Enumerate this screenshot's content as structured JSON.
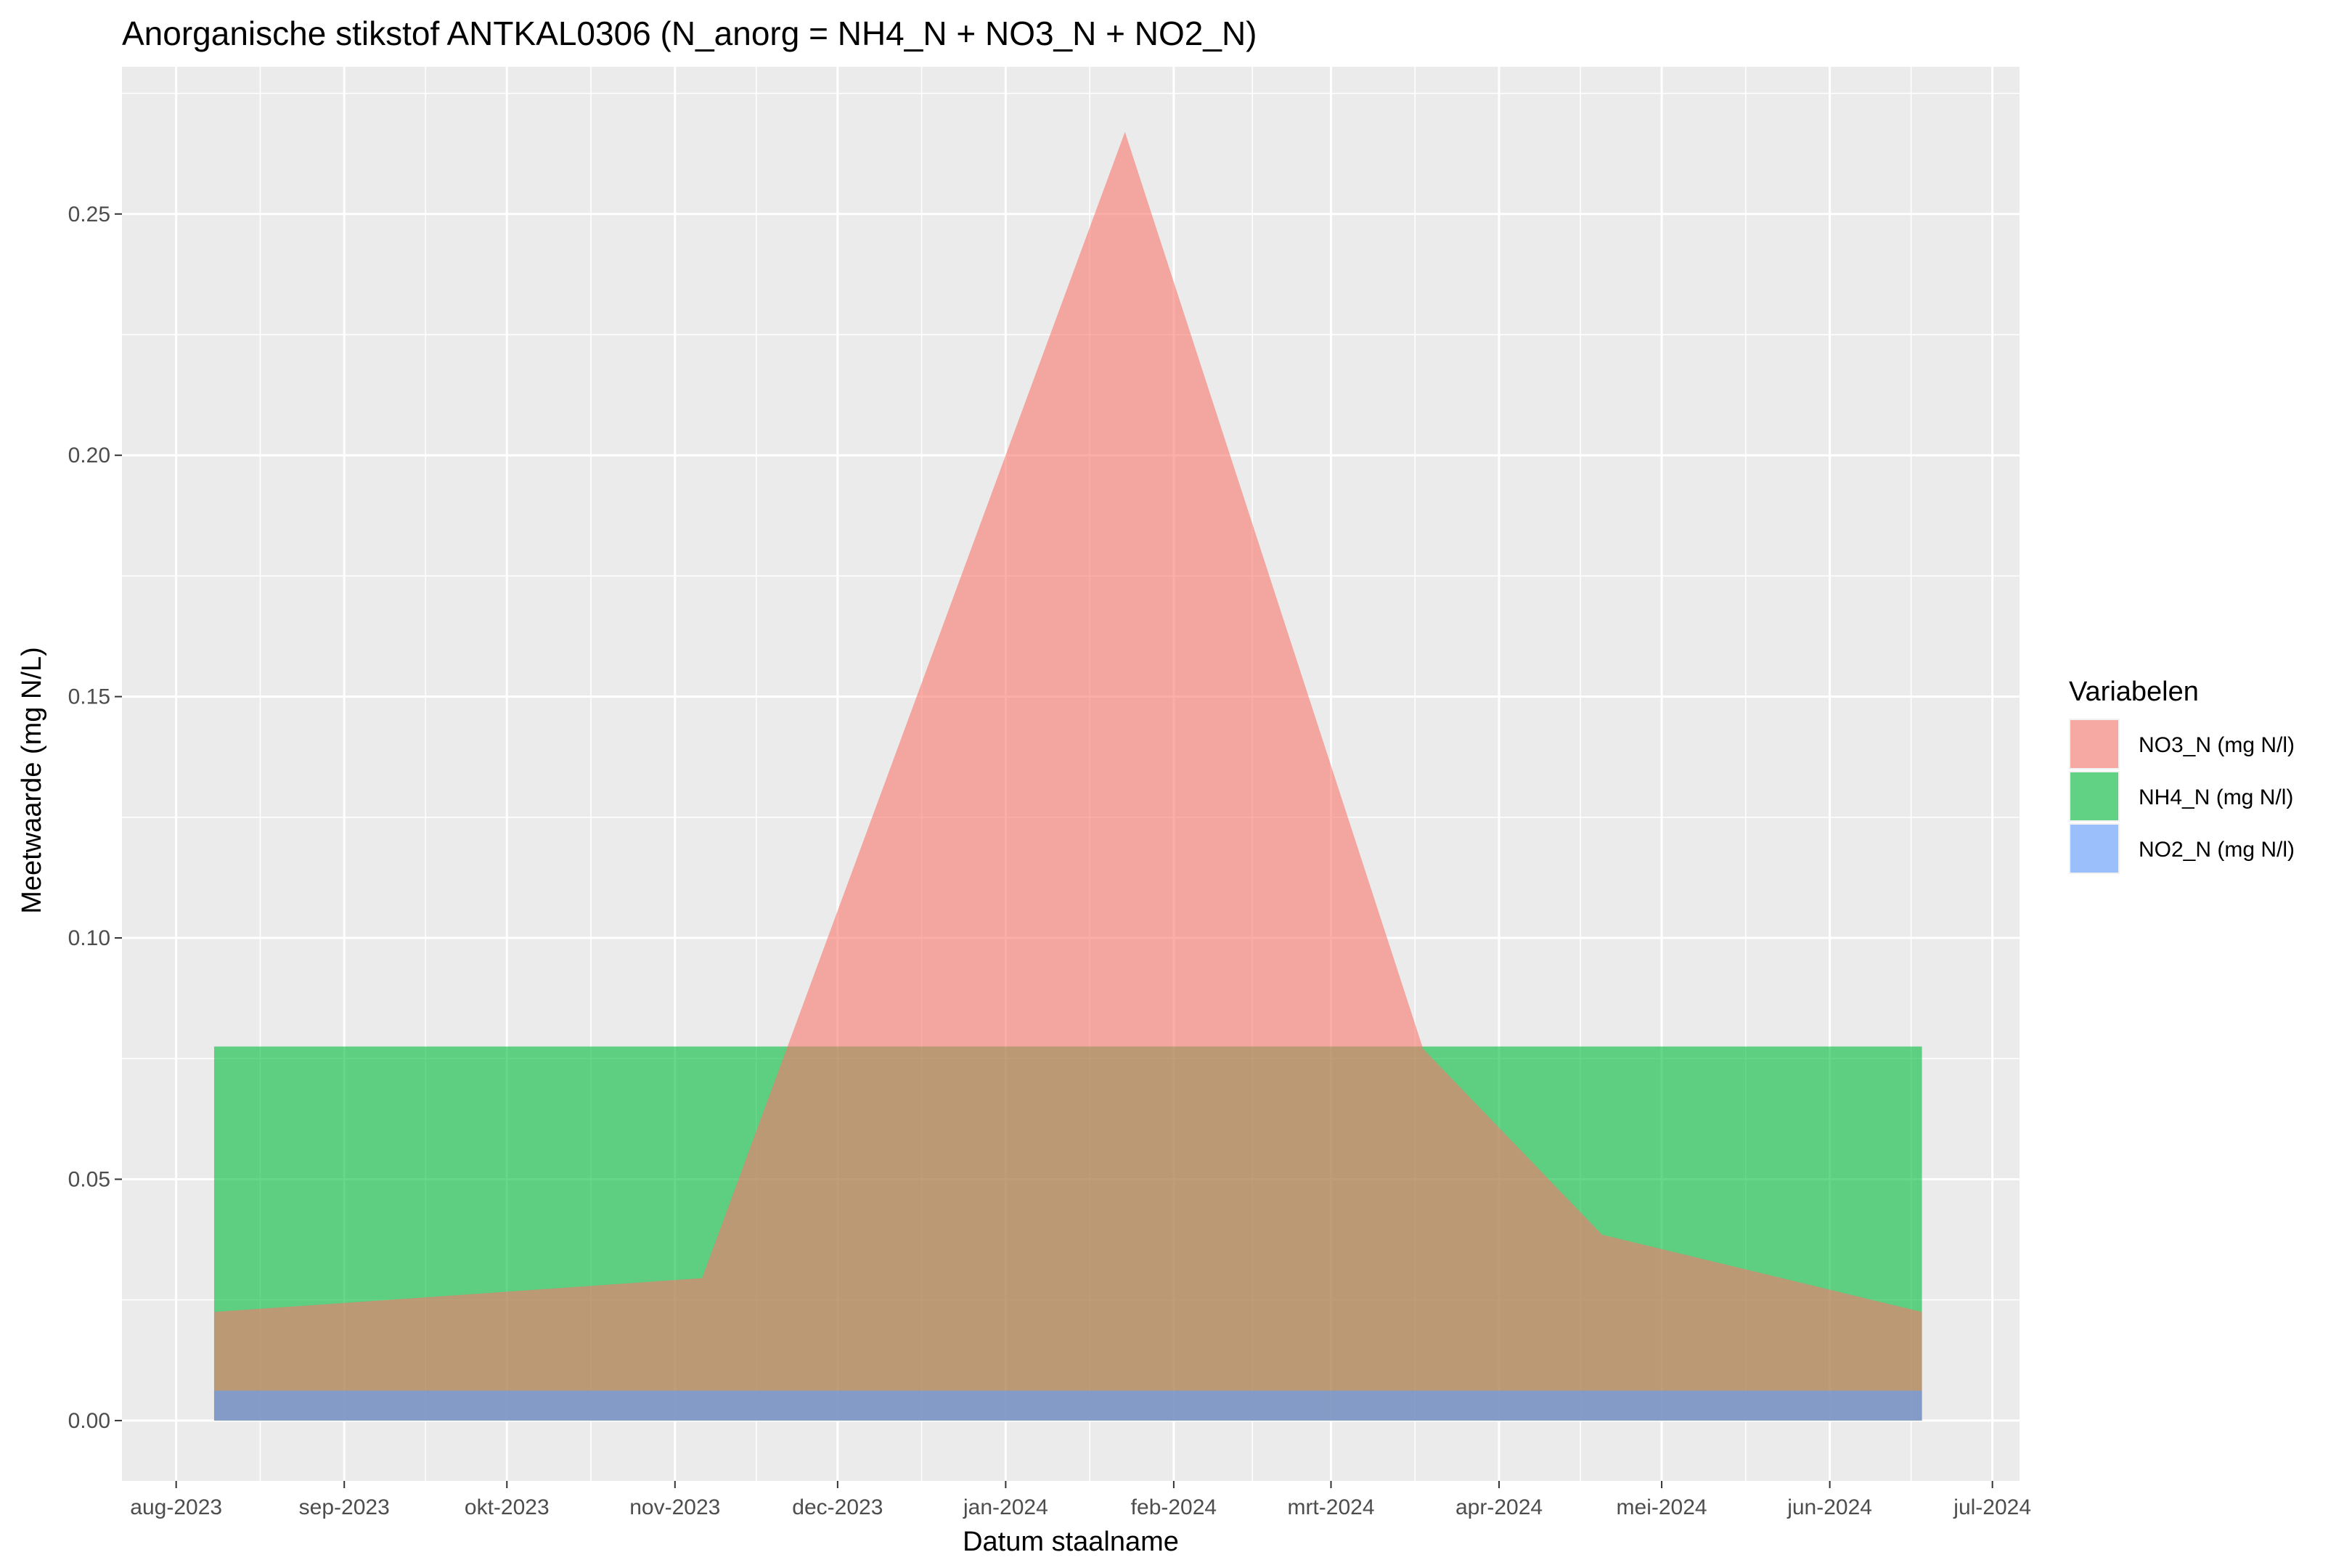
{
  "chart_data": {
    "type": "area",
    "title": "Anorganische stikstof ANTKAL0306 (N_anorg = NH4_N + NO3_N + NO2_N)",
    "xlabel": "Datum staalname",
    "ylabel": "Meetwaarde (mg N/L)",
    "x_ticks": [
      "aug-2023",
      "sep-2023",
      "okt-2023",
      "nov-2023",
      "dec-2023",
      "jan-2024",
      "feb-2024",
      "mrt-2024",
      "apr-2024",
      "mei-2024",
      "jun-2024",
      "jul-2024"
    ],
    "y_ticks": [
      "0.00",
      "0.05",
      "0.10",
      "0.15",
      "0.20",
      "0.25"
    ],
    "ylim": [
      -0.0125,
      0.2805
    ],
    "xlim": [
      "2023-07-22",
      "2024-07-06"
    ],
    "grid": true,
    "legend_title": "Variabelen",
    "legend_position": "right",
    "series": [
      {
        "name": "NO3_N (mg N/l)",
        "color": "#F8766D",
        "x": [
          "2023-08-08",
          "2023-11-06",
          "2024-01-23",
          "2024-03-18",
          "2024-04-20",
          "2024-06-18"
        ],
        "values": [
          0.0225,
          0.0295,
          0.267,
          0.077,
          0.0385,
          0.0225
        ]
      },
      {
        "name": "NH4_N (mg N/l)",
        "color": "#00BA38",
        "x": [
          "2023-08-08",
          "2024-06-18"
        ],
        "values": [
          0.0775,
          0.0775
        ]
      },
      {
        "name": "NO2_N (mg N/l)",
        "color": "#619CFF",
        "x": [
          "2023-08-08",
          "2024-06-18"
        ],
        "values": [
          0.0062,
          0.0062
        ]
      }
    ]
  }
}
